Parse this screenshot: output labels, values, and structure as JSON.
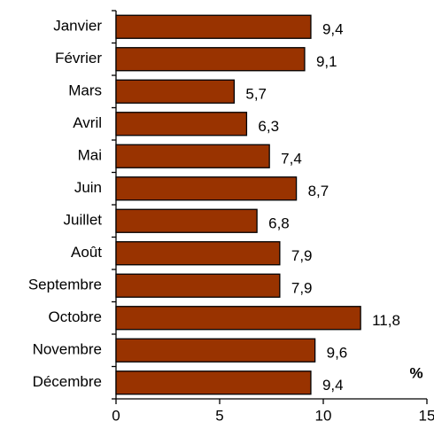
{
  "chart_data": {
    "type": "bar",
    "orientation": "horizontal",
    "categories": [
      "Janvier",
      "Février",
      "Mars",
      "Avril",
      "Mai",
      "Juin",
      "Juillet",
      "Août",
      "Septembre",
      "Octobre",
      "Novembre",
      "Décembre"
    ],
    "values": [
      9.4,
      9.1,
      5.7,
      6.3,
      7.4,
      8.7,
      6.8,
      7.9,
      7.9,
      11.8,
      9.6,
      9.4
    ],
    "value_labels": [
      "9,4",
      "9,1",
      "5,7",
      "6,3",
      "7,4",
      "8,7",
      "6,8",
      "7,9",
      "7,9",
      "11,8",
      "9,6",
      "9,4"
    ],
    "color": "#993300",
    "xlim": [
      0,
      15
    ],
    "xticks": [
      0,
      5,
      10,
      15
    ],
    "annotation": "%"
  }
}
